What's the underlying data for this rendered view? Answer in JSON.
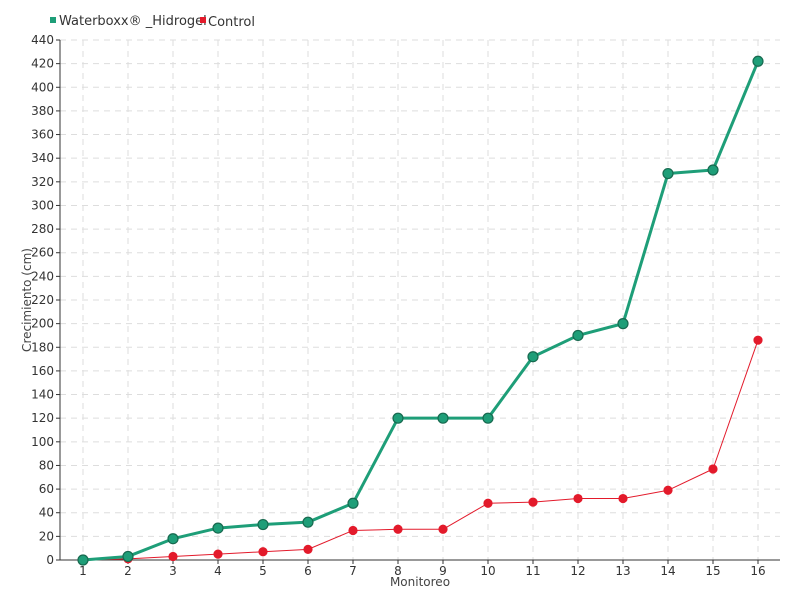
{
  "chart_data": {
    "type": "line",
    "title": "",
    "xlabel": "Monitoreo",
    "ylabel": "Crecimiento (cm)",
    "categories": [
      "1",
      "2",
      "3",
      "4",
      "5",
      "6",
      "7",
      "8",
      "9",
      "10",
      "11",
      "12",
      "13",
      "14",
      "15",
      "16"
    ],
    "ylim": [
      0,
      440
    ],
    "yticks": [
      0,
      20,
      40,
      60,
      80,
      100,
      120,
      140,
      160,
      180,
      200,
      220,
      240,
      260,
      280,
      300,
      320,
      340,
      360,
      380,
      400,
      420,
      440
    ],
    "grid": true,
    "legend_position": "top-left",
    "series": [
      {
        "name": "Waterboxx® _Hidrogel",
        "color": "#1e9e78",
        "values": [
          0,
          3,
          18,
          27,
          30,
          32,
          48,
          120,
          120,
          120,
          172,
          190,
          200,
          327,
          330,
          422
        ]
      },
      {
        "name": "Control",
        "color": "#e31a2b",
        "values": [
          0,
          1,
          3,
          5,
          7,
          9,
          25,
          26,
          26,
          48,
          49,
          52,
          52,
          59,
          77,
          186
        ]
      }
    ]
  }
}
